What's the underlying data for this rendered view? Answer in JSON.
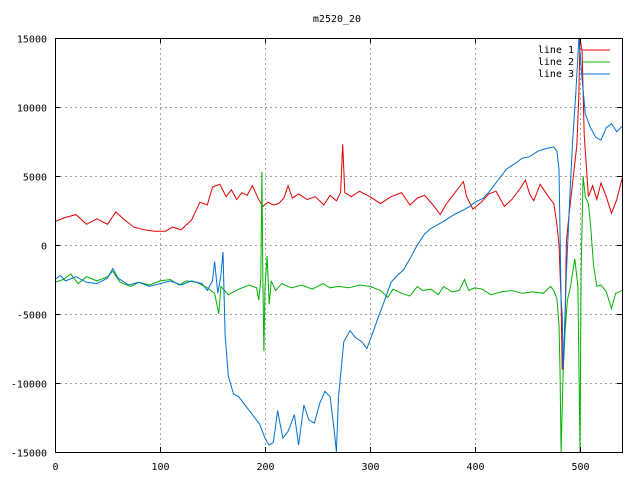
{
  "chart_data": {
    "type": "line",
    "title": "m2520_20",
    "xlim": [
      0,
      540
    ],
    "ylim": [
      -15000,
      15000
    ],
    "x_ticks": [
      0,
      100,
      200,
      300,
      400,
      500
    ],
    "y_ticks": [
      -15000,
      -10000,
      -5000,
      0,
      5000,
      10000,
      15000
    ],
    "x_tick_labels": [
      "0",
      "100",
      "200",
      "300",
      "400",
      "500"
    ],
    "y_tick_labels": [
      "-15000",
      "-10000",
      "-5000",
      "0",
      "5000",
      "10000",
      "15000"
    ],
    "grid": true,
    "legend_position": "top-right",
    "series": [
      {
        "name": "line 1",
        "color": "#e00000",
        "points": [
          [
            0,
            1700
          ],
          [
            10,
            2000
          ],
          [
            20,
            2200
          ],
          [
            30,
            1500
          ],
          [
            40,
            1900
          ],
          [
            50,
            1500
          ],
          [
            58,
            2400
          ],
          [
            65,
            1900
          ],
          [
            75,
            1300
          ],
          [
            85,
            1100
          ],
          [
            95,
            1000
          ],
          [
            105,
            1000
          ],
          [
            112,
            1300
          ],
          [
            120,
            1100
          ],
          [
            130,
            1800
          ],
          [
            138,
            3100
          ],
          [
            145,
            2900
          ],
          [
            150,
            4200
          ],
          [
            157,
            4400
          ],
          [
            163,
            3500
          ],
          [
            168,
            4000
          ],
          [
            173,
            3300
          ],
          [
            178,
            3800
          ],
          [
            183,
            3600
          ],
          [
            188,
            4300
          ],
          [
            194,
            3300
          ],
          [
            198,
            2800
          ],
          [
            203,
            3100
          ],
          [
            208,
            2900
          ],
          [
            213,
            3000
          ],
          [
            218,
            3400
          ],
          [
            222,
            4300
          ],
          [
            226,
            3400
          ],
          [
            232,
            3700
          ],
          [
            240,
            3300
          ],
          [
            248,
            3500
          ],
          [
            256,
            2900
          ],
          [
            262,
            3600
          ],
          [
            268,
            3200
          ],
          [
            272,
            3800
          ],
          [
            274,
            7300
          ],
          [
            276,
            3800
          ],
          [
            282,
            3500
          ],
          [
            290,
            3900
          ],
          [
            300,
            3500
          ],
          [
            310,
            3000
          ],
          [
            320,
            3500
          ],
          [
            330,
            3800
          ],
          [
            338,
            2900
          ],
          [
            345,
            3400
          ],
          [
            352,
            3600
          ],
          [
            360,
            2900
          ],
          [
            367,
            2200
          ],
          [
            372,
            2900
          ],
          [
            378,
            3500
          ],
          [
            385,
            4200
          ],
          [
            389,
            4600
          ],
          [
            392,
            3500
          ],
          [
            398,
            2600
          ],
          [
            406,
            3100
          ],
          [
            413,
            3700
          ],
          [
            420,
            3900
          ],
          [
            428,
            2800
          ],
          [
            435,
            3300
          ],
          [
            443,
            4100
          ],
          [
            448,
            4700
          ],
          [
            452,
            3700
          ],
          [
            456,
            3200
          ],
          [
            462,
            4400
          ],
          [
            470,
            3500
          ],
          [
            475,
            3000
          ],
          [
            478,
            1500
          ],
          [
            480,
            0
          ],
          [
            482,
            -4000
          ],
          [
            483,
            -9000
          ],
          [
            484,
            -9000
          ],
          [
            486,
            -4500
          ],
          [
            487,
            300
          ],
          [
            490,
            2500
          ],
          [
            494,
            5200
          ],
          [
            497,
            7300
          ],
          [
            499,
            11000
          ],
          [
            500,
            15000
          ],
          [
            502,
            14000
          ],
          [
            504,
            8000
          ],
          [
            508,
            3500
          ],
          [
            512,
            4300
          ],
          [
            516,
            3300
          ],
          [
            520,
            4500
          ],
          [
            525,
            3500
          ],
          [
            530,
            2300
          ],
          [
            535,
            3300
          ],
          [
            540,
            4800
          ]
        ]
      },
      {
        "name": "line 2",
        "color": "#00b000",
        "points": [
          [
            0,
            -2700
          ],
          [
            8,
            -2500
          ],
          [
            15,
            -2100
          ],
          [
            22,
            -2800
          ],
          [
            30,
            -2300
          ],
          [
            40,
            -2600
          ],
          [
            50,
            -2300
          ],
          [
            55,
            -1900
          ],
          [
            62,
            -2700
          ],
          [
            72,
            -3000
          ],
          [
            80,
            -2700
          ],
          [
            90,
            -2900
          ],
          [
            100,
            -2600
          ],
          [
            110,
            -2500
          ],
          [
            118,
            -2900
          ],
          [
            125,
            -2600
          ],
          [
            135,
            -2700
          ],
          [
            145,
            -3100
          ],
          [
            152,
            -3500
          ],
          [
            156,
            -5000
          ],
          [
            158,
            -3000
          ],
          [
            165,
            -3600
          ],
          [
            175,
            -3200
          ],
          [
            185,
            -2900
          ],
          [
            192,
            -3100
          ],
          [
            194,
            -4000
          ],
          [
            196,
            -2500
          ],
          [
            197,
            5300
          ],
          [
            198,
            -2500
          ],
          [
            199,
            -7700
          ],
          [
            200,
            -3000
          ],
          [
            202,
            -800
          ],
          [
            204,
            -4300
          ],
          [
            206,
            -2600
          ],
          [
            210,
            -3300
          ],
          [
            216,
            -2800
          ],
          [
            225,
            -3100
          ],
          [
            235,
            -2900
          ],
          [
            245,
            -3200
          ],
          [
            255,
            -2800
          ],
          [
            262,
            -3100
          ],
          [
            270,
            -3000
          ],
          [
            280,
            -3100
          ],
          [
            290,
            -2900
          ],
          [
            300,
            -3000
          ],
          [
            310,
            -3300
          ],
          [
            317,
            -3800
          ],
          [
            322,
            -3200
          ],
          [
            330,
            -3500
          ],
          [
            338,
            -3700
          ],
          [
            345,
            -3000
          ],
          [
            350,
            -3300
          ],
          [
            358,
            -3200
          ],
          [
            365,
            -3600
          ],
          [
            370,
            -3000
          ],
          [
            378,
            -3400
          ],
          [
            385,
            -3300
          ],
          [
            390,
            -2500
          ],
          [
            394,
            -3300
          ],
          [
            400,
            -3100
          ],
          [
            407,
            -3200
          ],
          [
            415,
            -3600
          ],
          [
            425,
            -3400
          ],
          [
            435,
            -3300
          ],
          [
            445,
            -3500
          ],
          [
            455,
            -3400
          ],
          [
            465,
            -3500
          ],
          [
            472,
            -3000
          ],
          [
            475,
            -3300
          ],
          [
            478,
            -3900
          ],
          [
            480,
            -5800
          ],
          [
            481,
            -9000
          ],
          [
            482,
            -15000
          ],
          [
            483,
            -12000
          ],
          [
            484,
            -9000
          ],
          [
            486,
            -6000
          ],
          [
            488,
            -4000
          ],
          [
            491,
            -3000
          ],
          [
            495,
            -1000
          ],
          [
            498,
            -3000
          ],
          [
            500,
            -15000
          ],
          [
            501,
            -2000
          ],
          [
            503,
            5000
          ],
          [
            505,
            3500
          ],
          [
            508,
            3000
          ],
          [
            510,
            1500
          ],
          [
            513,
            -1500
          ],
          [
            516,
            -3000
          ],
          [
            520,
            -2900
          ],
          [
            525,
            -3400
          ],
          [
            530,
            -4600
          ],
          [
            534,
            -3500
          ],
          [
            540,
            -3300
          ]
        ]
      },
      {
        "name": "line 3",
        "color": "#0070d0",
        "points": [
          [
            0,
            -2500
          ],
          [
            5,
            -2200
          ],
          [
            10,
            -2600
          ],
          [
            20,
            -2300
          ],
          [
            30,
            -2700
          ],
          [
            40,
            -2800
          ],
          [
            50,
            -2400
          ],
          [
            55,
            -1700
          ],
          [
            60,
            -2400
          ],
          [
            70,
            -2900
          ],
          [
            80,
            -2700
          ],
          [
            90,
            -3000
          ],
          [
            100,
            -2800
          ],
          [
            110,
            -2600
          ],
          [
            120,
            -2900
          ],
          [
            130,
            -2600
          ],
          [
            140,
            -2800
          ],
          [
            145,
            -3300
          ],
          [
            150,
            -2600
          ],
          [
            152,
            -1200
          ],
          [
            155,
            -3500
          ],
          [
            158,
            -2200
          ],
          [
            160,
            -500
          ],
          [
            162,
            -6500
          ],
          [
            165,
            -9500
          ],
          [
            170,
            -10800
          ],
          [
            175,
            -11000
          ],
          [
            180,
            -11500
          ],
          [
            185,
            -12000
          ],
          [
            190,
            -12500
          ],
          [
            195,
            -13000
          ],
          [
            200,
            -14000
          ],
          [
            204,
            -14500
          ],
          [
            208,
            -14300
          ],
          [
            212,
            -12000
          ],
          [
            217,
            -14000
          ],
          [
            222,
            -13500
          ],
          [
            228,
            -12300
          ],
          [
            232,
            -14500
          ],
          [
            237,
            -11600
          ],
          [
            242,
            -12700
          ],
          [
            247,
            -12900
          ],
          [
            252,
            -11500
          ],
          [
            257,
            -10600
          ],
          [
            262,
            -11000
          ],
          [
            266,
            -13500
          ],
          [
            268,
            -15000
          ],
          [
            270,
            -11000
          ],
          [
            275,
            -7000
          ],
          [
            281,
            -6200
          ],
          [
            286,
            -6700
          ],
          [
            292,
            -7000
          ],
          [
            297,
            -7500
          ],
          [
            302,
            -6500
          ],
          [
            308,
            -5200
          ],
          [
            314,
            -4000
          ],
          [
            320,
            -2700
          ],
          [
            326,
            -2200
          ],
          [
            332,
            -1800
          ],
          [
            338,
            -1000
          ],
          [
            345,
            0
          ],
          [
            352,
            800
          ],
          [
            358,
            1200
          ],
          [
            365,
            1500
          ],
          [
            372,
            1800
          ],
          [
            380,
            2200
          ],
          [
            388,
            2500
          ],
          [
            395,
            2800
          ],
          [
            400,
            3100
          ],
          [
            408,
            3400
          ],
          [
            415,
            4000
          ],
          [
            422,
            4700
          ],
          [
            430,
            5500
          ],
          [
            438,
            5900
          ],
          [
            445,
            6300
          ],
          [
            452,
            6400
          ],
          [
            460,
            6800
          ],
          [
            468,
            7000
          ],
          [
            475,
            7100
          ],
          [
            478,
            6800
          ],
          [
            480,
            5500
          ],
          [
            482,
            -4000
          ],
          [
            483,
            -5000
          ],
          [
            484,
            -9000
          ],
          [
            485,
            -7000
          ],
          [
            487,
            -2000
          ],
          [
            490,
            3000
          ],
          [
            493,
            7500
          ],
          [
            496,
            11000
          ],
          [
            499,
            15000
          ],
          [
            502,
            12000
          ],
          [
            505,
            9500
          ],
          [
            510,
            8500
          ],
          [
            515,
            7800
          ],
          [
            520,
            7600
          ],
          [
            525,
            8500
          ],
          [
            530,
            8800
          ],
          [
            535,
            8200
          ],
          [
            540,
            8600
          ]
        ]
      }
    ]
  }
}
